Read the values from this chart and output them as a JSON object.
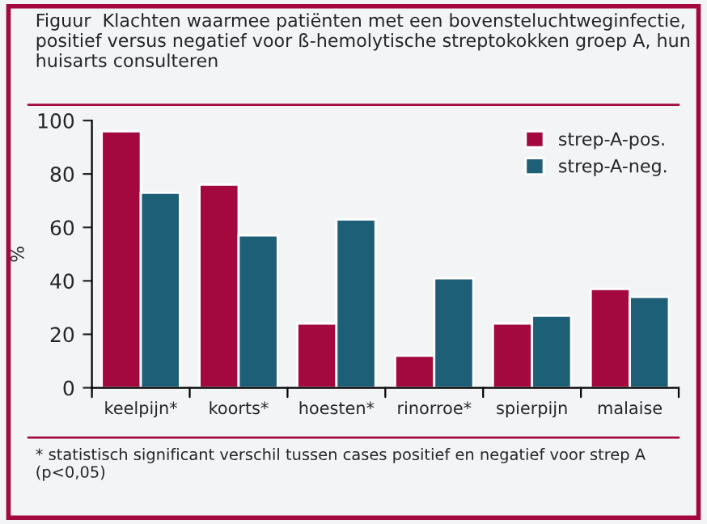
{
  "chart_data": {
    "type": "bar",
    "title": "Figuur  Klachten waarmee patiënten met een bovensteluchtweginfectie, positief versus negatief voor ß-hemolytische streptokokken groep A, hun huisarts consulteren",
    "ylabel": "%",
    "categories": [
      "keelpijn*",
      "koorts*",
      "hoesten*",
      "rinorroe*",
      "spierpijn",
      "malaise"
    ],
    "series": [
      {
        "name": "strep-A-pos.",
        "color": "#a3083f",
        "values": [
          96,
          76,
          24,
          12,
          24,
          37
        ]
      },
      {
        "name": "strep-A-neg.",
        "color": "#1e5f78",
        "values": [
          73,
          57,
          63,
          41,
          27,
          34
        ]
      }
    ],
    "ylim": [
      0,
      100
    ],
    "yticks": [
      0,
      20,
      40,
      60,
      80,
      100
    ],
    "grid": false,
    "legend": "top right",
    "annotations": [
      "* statistisch significant verschil tussen cases positief en negatief voor strep A (p<0,05)"
    ]
  }
}
